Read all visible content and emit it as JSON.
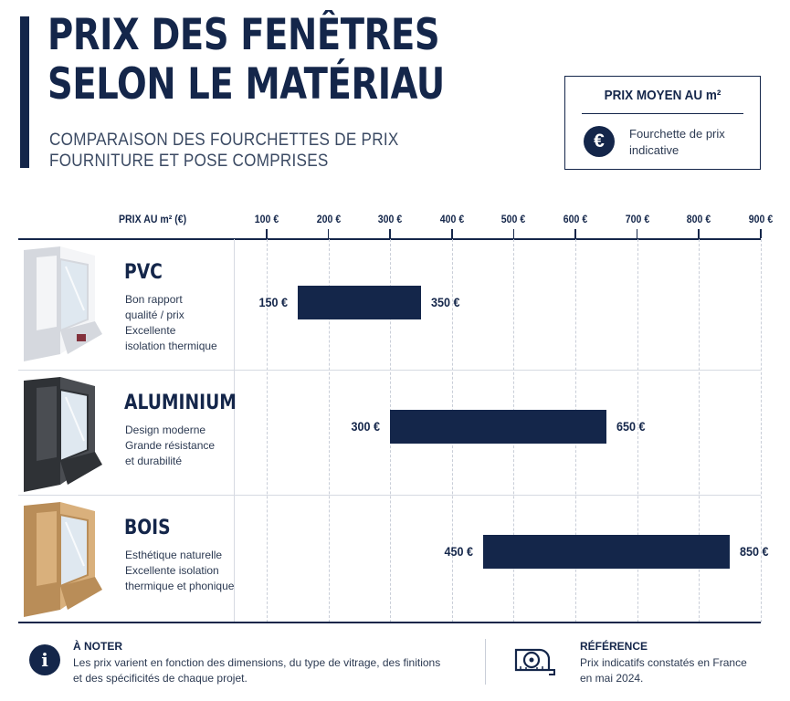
{
  "header": {
    "title_line1": "PRIX DES FENÊTRES",
    "title_line2": "SELON LE MATÉRIAU",
    "subtitle_line1": "COMPARAISON DES FOURCHETTES DE PRIX",
    "subtitle_line2": "FOURNITURE ET POSE COMPRISES"
  },
  "legend": {
    "title": "PRIX MOYEN AU m²",
    "icon": "euro-icon",
    "text_line1": "Fourchette de prix",
    "text_line2": "indicative"
  },
  "chart_data": {
    "type": "bar",
    "orientation": "horizontal-range",
    "title": "PRIX DES FENÊTRES SELON LE MATÉRIAU",
    "xlabel": "PRIX AU m² (€)",
    "xlim": [
      50,
      900
    ],
    "ticks": [
      100,
      200,
      300,
      400,
      500,
      600,
      700,
      800,
      900
    ],
    "tick_labels": [
      "100 €",
      "200 €",
      "300 €",
      "400 €",
      "500 €",
      "600 €",
      "700 €",
      "800 €",
      "900 €"
    ],
    "grid": true,
    "color": "#14264a",
    "categories": [
      "PVC",
      "ALUMINIUM",
      "BOIS"
    ],
    "ranges": [
      {
        "min": 150,
        "max": 350,
        "min_label": "150 €",
        "max_label": "350 €"
      },
      {
        "min": 300,
        "max": 650,
        "min_label": "300 €",
        "max_label": "650 €"
      },
      {
        "min": 450,
        "max": 850,
        "min_label": "450 €",
        "max_label": "850 €"
      }
    ]
  },
  "materials": [
    {
      "name": "PVC",
      "desc": [
        "Bon rapport",
        "qualité / prix",
        "Excellente",
        "isolation thermique"
      ],
      "icon": "pvc-window-icon",
      "frame_color": "#f4f5f7",
      "frame_shade": "#d5d8de"
    },
    {
      "name": "ALUMINIUM",
      "desc": [
        "Design moderne",
        "Grande résistance",
        "et durabilité"
      ],
      "icon": "aluminium-window-icon",
      "frame_color": "#4a4d52",
      "frame_shade": "#2f3236"
    },
    {
      "name": "BOIS",
      "desc": [
        "Esthétique naturelle",
        "Excellente isolation",
        "thermique et phonique"
      ],
      "icon": "wood-window-icon",
      "frame_color": "#d9b07c",
      "frame_shade": "#b98d58"
    }
  ],
  "footer": {
    "note_title": "À NOTER",
    "note_line1": "Les prix varient en fonction des dimensions, du type de vitrage, des finitions",
    "note_line2": "et des spécificités de chaque projet.",
    "note_icon": "info-icon",
    "ref_title": "RÉFÉRENCE",
    "ref_line1": "Prix indicatifs constatés en France",
    "ref_line2": "en mai 2024.",
    "ref_icon": "tape-measure-icon"
  }
}
